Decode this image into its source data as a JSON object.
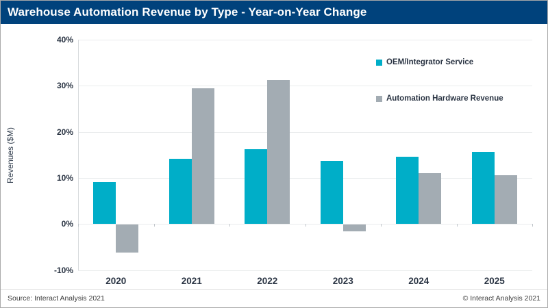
{
  "header": {
    "title": "Warehouse Automation Revenue by Type - Year-on-Year Change"
  },
  "footer": {
    "source": "Source: Interact Analysis 2021",
    "copyright": "© Interact Analysis 2021"
  },
  "colors": {
    "header_bg": "#00427C",
    "oem_series": "#00AEC8",
    "hardware_series": "#A3ACB3",
    "gridline": "#E9EBEC",
    "tick_text": "#2A3443"
  },
  "chart_data": {
    "type": "bar",
    "title": "Warehouse Automation Revenue by Type - Year-on-Year Change",
    "xlabel": "",
    "ylabel": "Revenues ($M)",
    "categories": [
      "2020",
      "2021",
      "2022",
      "2023",
      "2024",
      "2025"
    ],
    "series": [
      {
        "name": "OEM/Integrator Service",
        "color": "#00AEC8",
        "values": [
          9.1,
          14.2,
          16.3,
          13.7,
          14.6,
          15.7
        ]
      },
      {
        "name": "Automation Hardware Revenue",
        "color": "#A3ACB3",
        "values": [
          -6.0,
          29.5,
          31.2,
          -1.5,
          11.1,
          10.6
        ]
      }
    ],
    "ylim": [
      -10,
      40
    ],
    "ytick_step": 10,
    "ytick_labels": [
      "40%",
      "30%",
      "20%",
      "10%",
      "0%",
      "-10%"
    ],
    "grid": true,
    "legend_position": "upper right inside"
  }
}
